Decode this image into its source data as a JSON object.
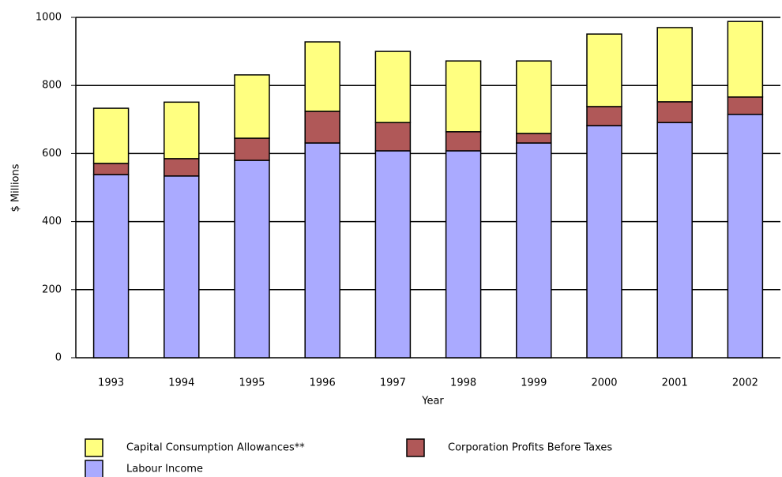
{
  "chart_data": {
    "type": "stacked_bar",
    "y_label": "$ Millions",
    "x_label": "Year",
    "categories": [
      "1993",
      "1994",
      "1995",
      "1996",
      "1997",
      "1998",
      "1999",
      "2000",
      "2001",
      "2002"
    ],
    "series": [
      {
        "name": "Labour Income",
        "color": "#aaaaff",
        "values": [
          538,
          534,
          580,
          631,
          608,
          608,
          631,
          682,
          691,
          715
        ]
      },
      {
        "name": "Corporation Profits Before Taxes",
        "color": "#b05858",
        "values": [
          33,
          51,
          65,
          93,
          83,
          56,
          28,
          56,
          61,
          51
        ]
      },
      {
        "name": "Capital Consumption Allowances**",
        "color": "#ffff80",
        "values": [
          162,
          166,
          186,
          204,
          209,
          208,
          213,
          213,
          218,
          222
        ]
      }
    ],
    "ylim": [
      0,
      1000
    ],
    "yticks": [
      0,
      200,
      400,
      600,
      800,
      1000
    ],
    "grid": true
  }
}
